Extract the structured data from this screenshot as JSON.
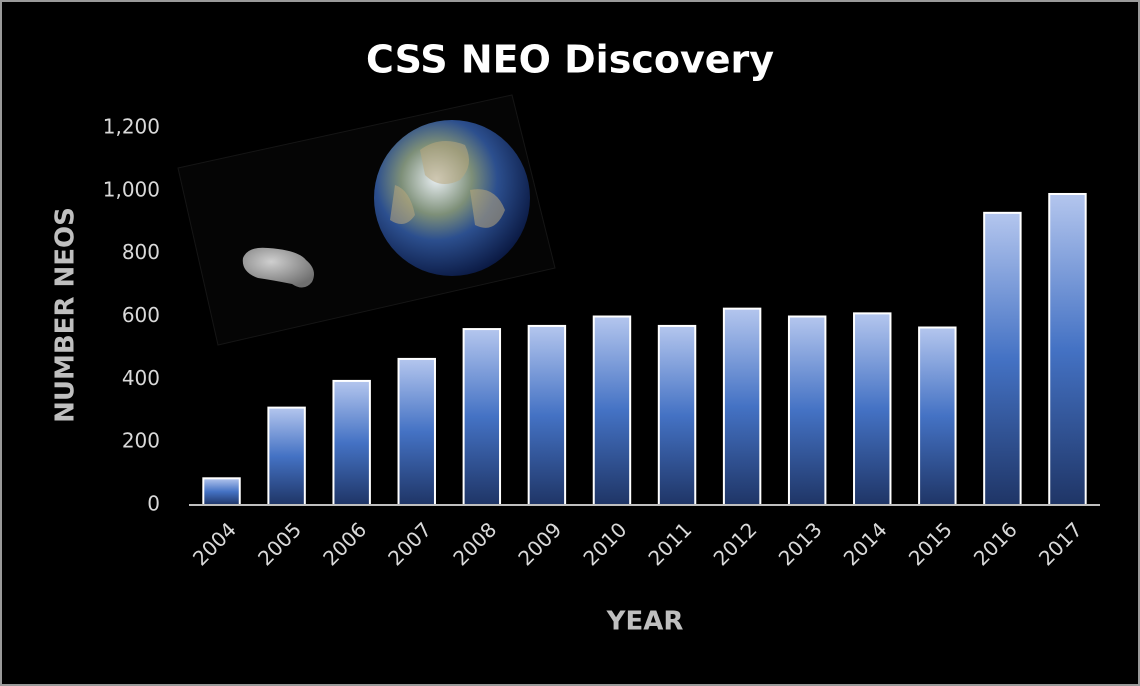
{
  "chart_data": {
    "type": "bar",
    "title": "CSS NEO Discovery",
    "x_label": "YEAR",
    "y_label": "NUMBER NEOS",
    "categories": [
      "2004",
      "2005",
      "2006",
      "2007",
      "2008",
      "2009",
      "2010",
      "2011",
      "2012",
      "2013",
      "2014",
      "2015",
      "2016",
      "2017"
    ],
    "values": [
      85,
      310,
      395,
      465,
      560,
      570,
      600,
      570,
      625,
      600,
      610,
      565,
      930,
      990
    ],
    "color": "#4472c4",
    "ylim": [
      0,
      1200
    ],
    "yticks": [
      0,
      200,
      400,
      600,
      800,
      {
        "value": 1000,
        "label": "1,000"
      },
      {
        "value": 1200,
        "label": "1,200"
      }
    ],
    "grid": false
  }
}
